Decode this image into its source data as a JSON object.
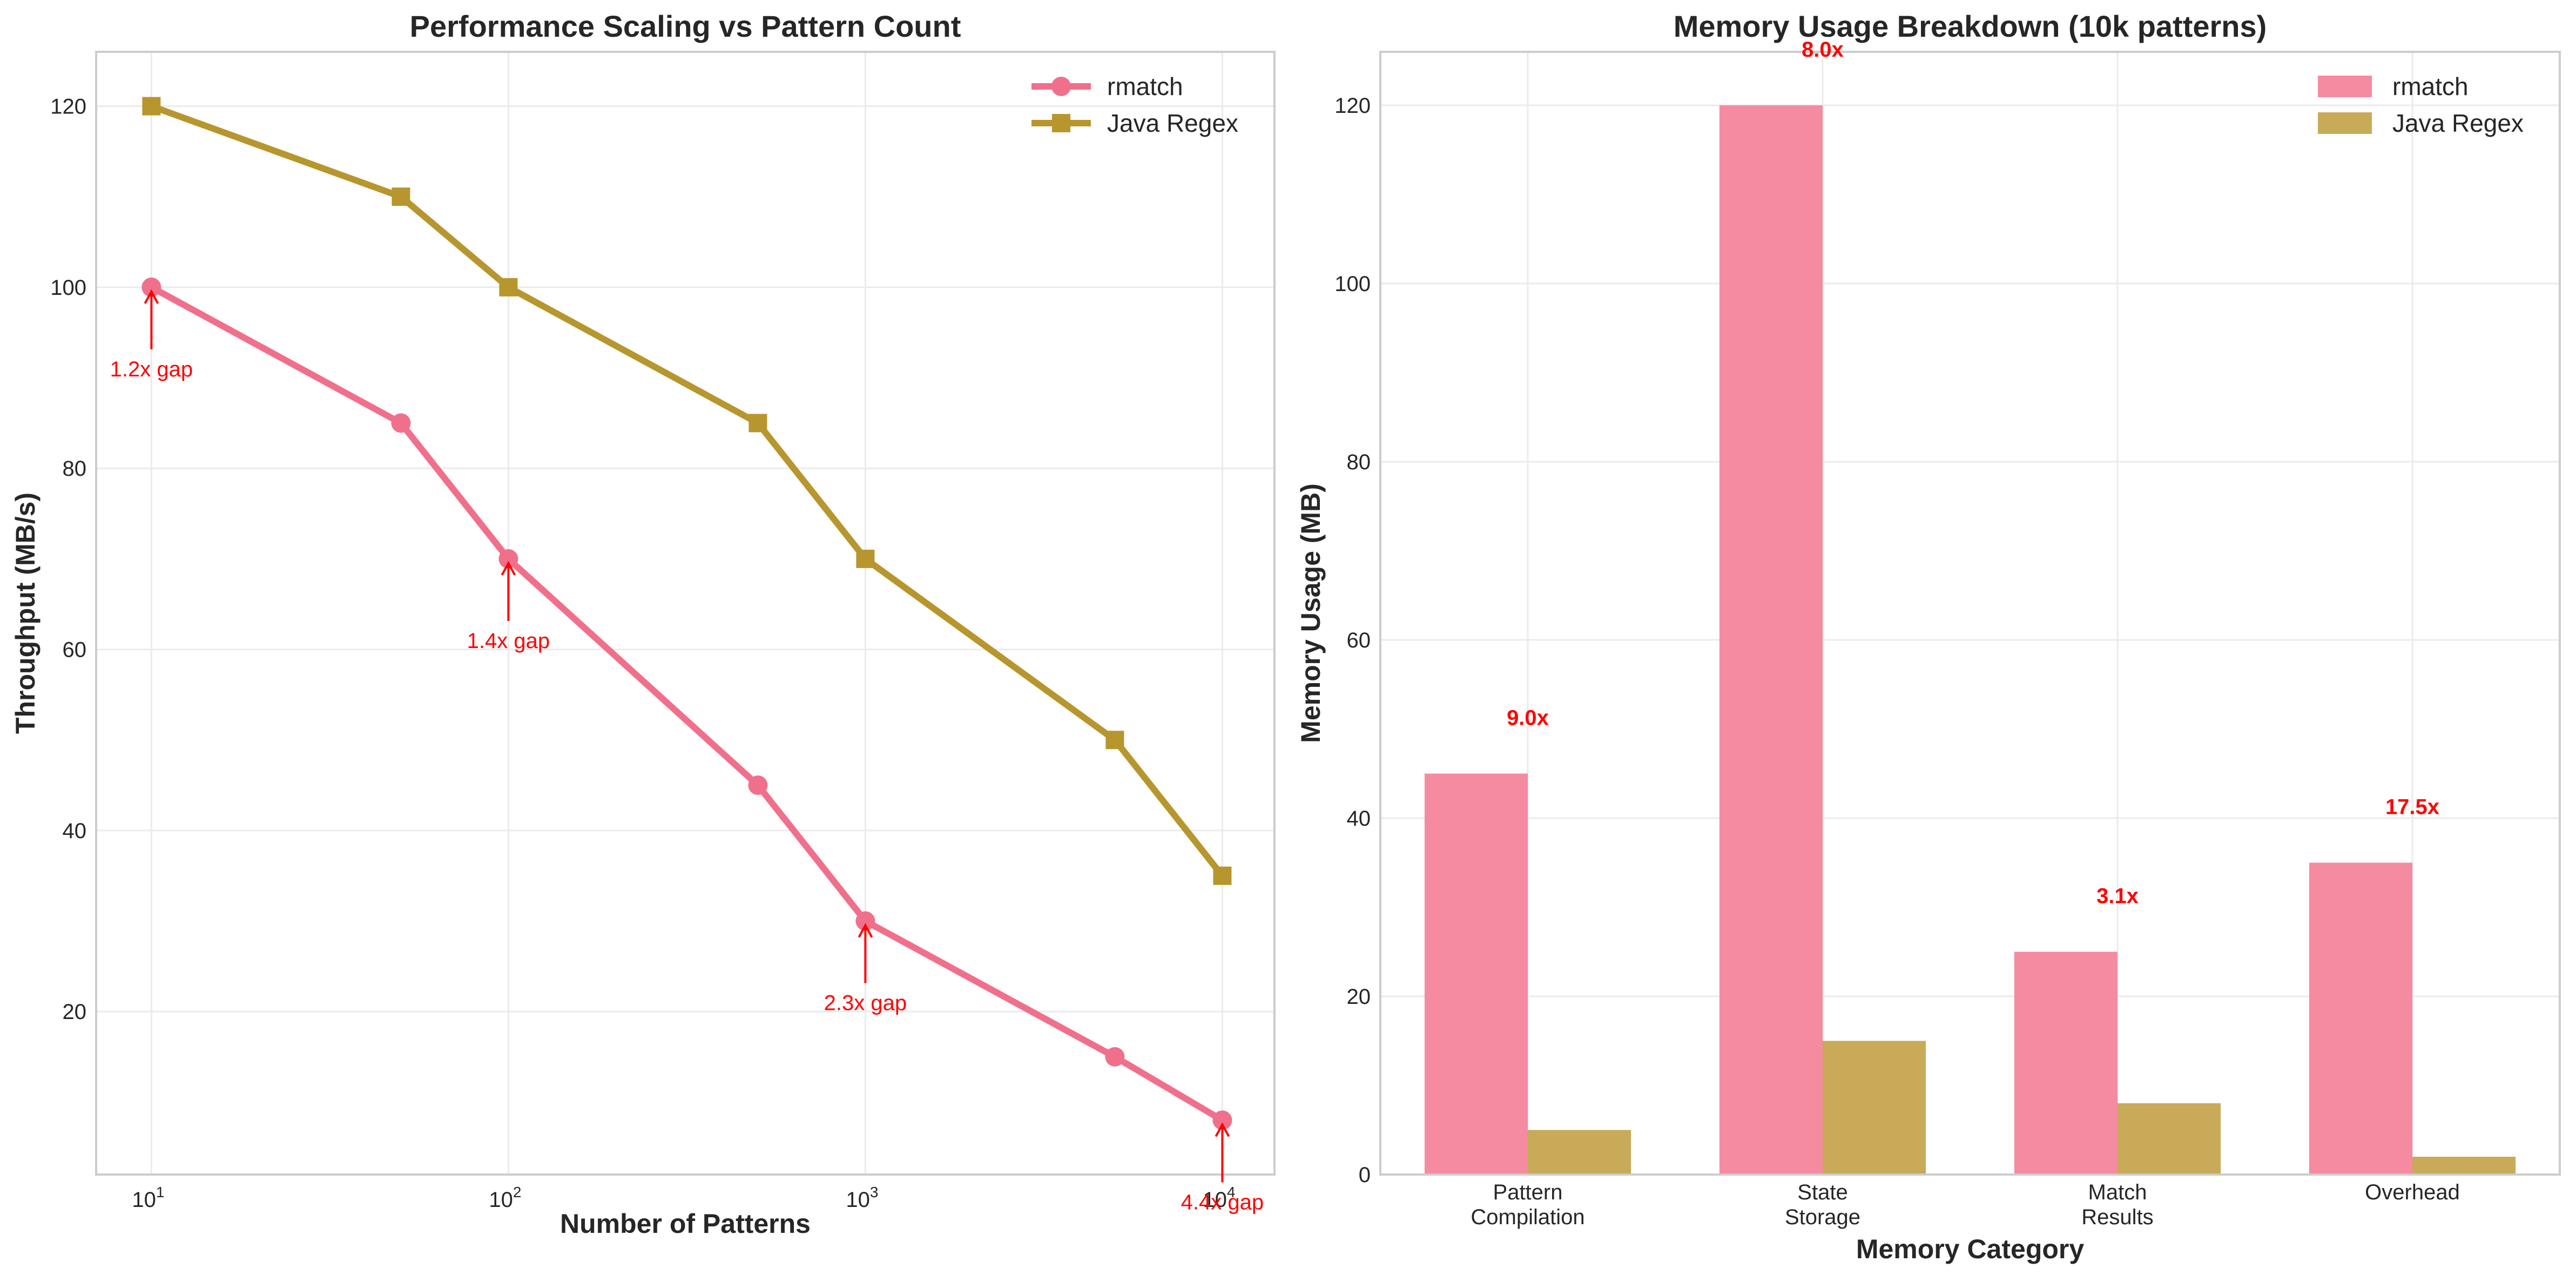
{
  "colors": {
    "rmatch": "#f0708b",
    "java": "#b8962e",
    "annotation": "#ff0000"
  },
  "chart_data": [
    {
      "type": "line",
      "title": "Performance Scaling vs Pattern Count",
      "xlabel": "Number of Patterns",
      "ylabel": "Throughput (MB/s)",
      "xscale": "log",
      "xlim": [
        7,
        14000
      ],
      "ylim": [
        2,
        126
      ],
      "xticks": [
        {
          "value": 10,
          "base": "10",
          "exp": "1"
        },
        {
          "value": 100,
          "base": "10",
          "exp": "2"
        },
        {
          "value": 1000,
          "base": "10",
          "exp": "3"
        },
        {
          "value": 10000,
          "base": "10",
          "exp": "4"
        }
      ],
      "yticks": [
        20,
        40,
        60,
        80,
        100,
        120
      ],
      "grid": true,
      "legend_position": "top-right",
      "series": [
        {
          "name": "rmatch",
          "marker": "circle",
          "color": "#f0708b",
          "x": [
            10,
            50,
            100,
            500,
            1000,
            5000,
            10000
          ],
          "y": [
            100,
            85,
            70,
            45,
            30,
            15,
            8
          ]
        },
        {
          "name": "Java Regex",
          "marker": "square",
          "color": "#b8962e",
          "x": [
            10,
            50,
            100,
            500,
            1000,
            5000,
            10000
          ],
          "y": [
            120,
            110,
            100,
            85,
            70,
            50,
            35
          ]
        }
      ],
      "annotations": [
        {
          "x": 10,
          "y": 100,
          "text": "1.2x gap"
        },
        {
          "x": 100,
          "y": 70,
          "text": "1.4x gap"
        },
        {
          "x": 1000,
          "y": 30,
          "text": "2.3x gap"
        },
        {
          "x": 10000,
          "y": 8,
          "text": "4.4x gap"
        }
      ]
    },
    {
      "type": "bar",
      "title": "Memory Usage Breakdown (10k patterns)",
      "xlabel": "Memory Category",
      "ylabel": "Memory Usage (MB)",
      "ylim": [
        0,
        126
      ],
      "yticks": [
        0,
        20,
        40,
        60,
        80,
        100,
        120
      ],
      "grid": true,
      "legend_position": "top-right",
      "categories": [
        [
          "Pattern",
          "Compilation"
        ],
        [
          "State",
          "Storage"
        ],
        [
          "Match",
          "Results"
        ],
        [
          "Overhead"
        ]
      ],
      "series": [
        {
          "name": "rmatch",
          "color": "#f58ba0",
          "values": [
            45,
            120,
            25,
            35
          ]
        },
        {
          "name": "Java Regex",
          "color": "#c8aa58",
          "values": [
            5,
            15,
            8,
            2
          ]
        }
      ],
      "ratio_labels": [
        "9.0x",
        "8.0x",
        "3.1x",
        "17.5x"
      ]
    }
  ]
}
